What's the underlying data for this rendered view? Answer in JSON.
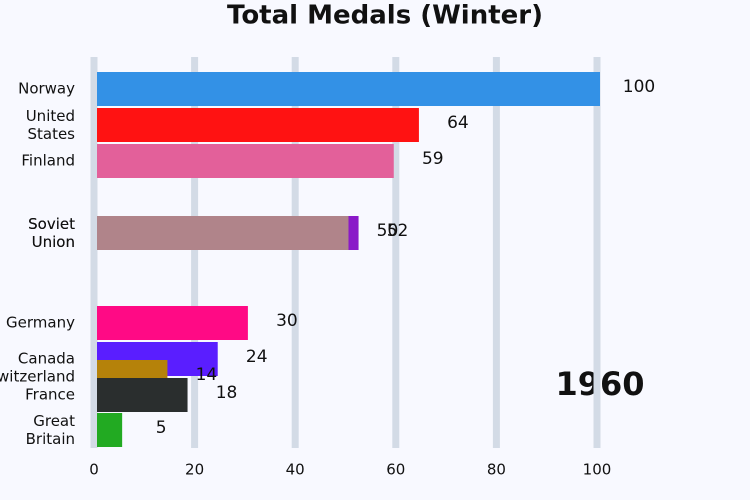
{
  "chart_data": {
    "type": "bar",
    "orientation": "horizontal",
    "title": "Total Medals (Winter)",
    "annotation": "1960",
    "categories": [
      "Norway",
      "United States",
      "Finland",
      "Soviet Union",
      "Soviet Union",
      "Germany",
      "Canada",
      "Switzerland",
      "France",
      "Great Britain"
    ],
    "values": [
      100,
      64,
      59,
      52,
      50,
      30,
      24,
      14,
      18,
      5
    ],
    "colors": [
      "#3391e6",
      "#ff1212",
      "#e3609a",
      "#8a19c8",
      "#b0848a",
      "#ff0a85",
      "#5a1eff",
      "#b5820a",
      "#2a2e2e",
      "#22aa22"
    ],
    "xlim": [
      0,
      100
    ],
    "xticks": [
      0,
      20,
      40,
      60,
      80,
      100
    ],
    "grid": true
  }
}
